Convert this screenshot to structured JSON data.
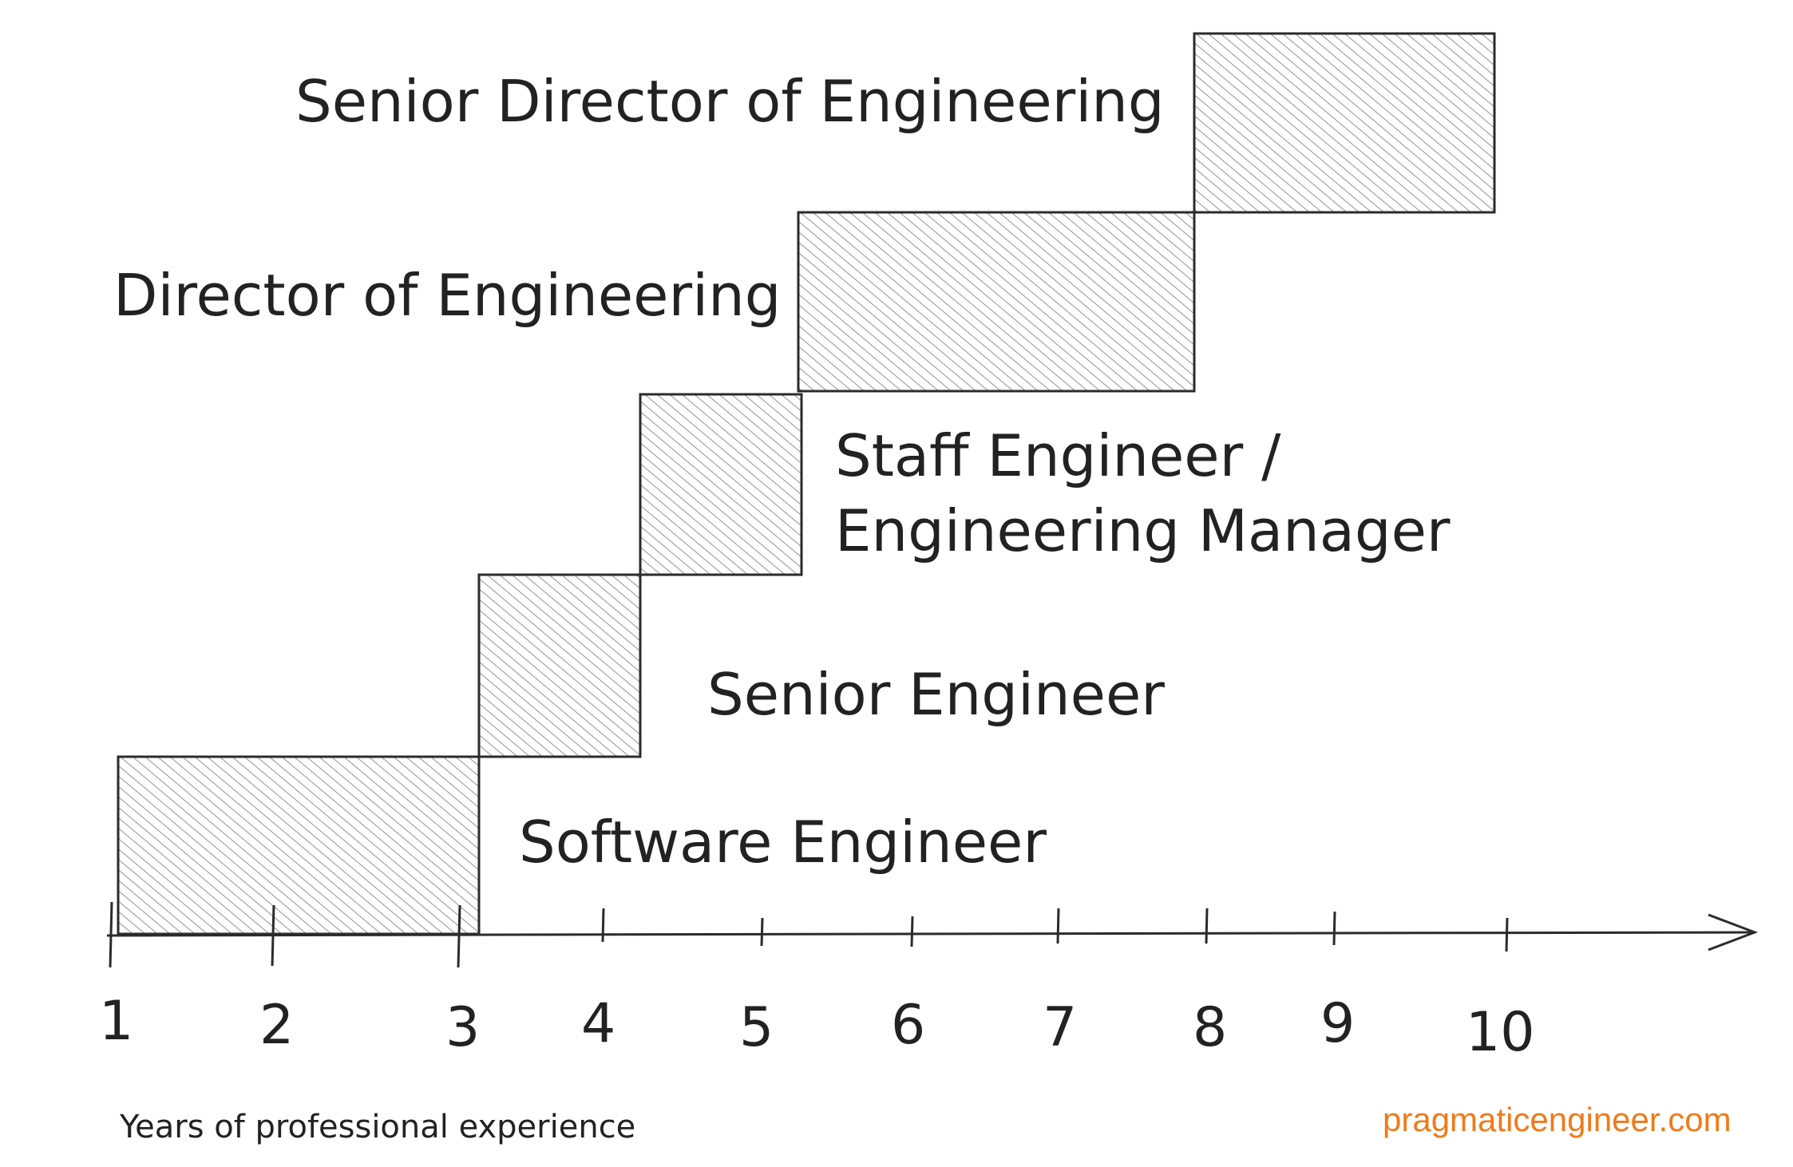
{
  "diagram": {
    "axis_title": "Years of professional experience",
    "watermark": "pragmaticengineer.com",
    "watermark_color": "#f07a1a",
    "box_hatch_color": "#9a9a9a",
    "line_color": "#2b2b2b",
    "ticks": [
      "1",
      "2",
      "3",
      "4",
      "5",
      "6",
      "7",
      "8",
      "9",
      "10"
    ],
    "roles": [
      {
        "lines": [
          "Software Engineer"
        ]
      },
      {
        "lines": [
          "Senior Engineer"
        ]
      },
      {
        "lines": [
          "Staff Engineer /",
          "Engineering Manager"
        ]
      },
      {
        "lines": [
          "Director of Engineering"
        ]
      },
      {
        "lines": [
          "Senior Director of Engineering"
        ]
      }
    ]
  }
}
